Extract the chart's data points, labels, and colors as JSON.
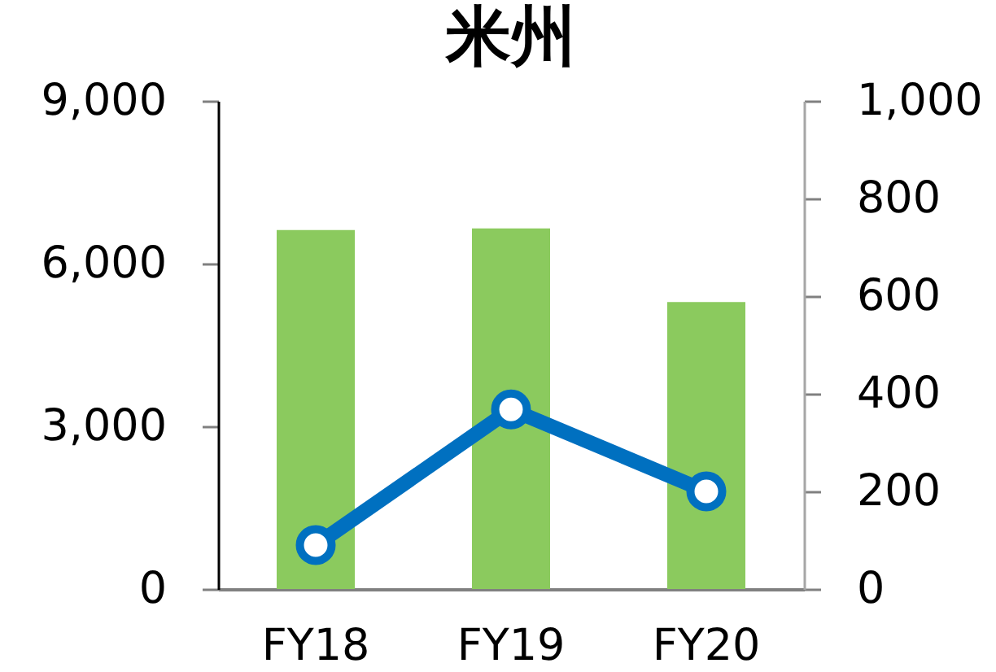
{
  "chart_data": {
    "type": "bar",
    "title": "米州",
    "categories": [
      "FY18",
      "FY19",
      "FY20"
    ],
    "series": [
      {
        "color": "#8bca5e",
        "values": [
          6620,
          6650,
          5290
        ]
      },
      {
        "type": "line",
        "axis": "y2",
        "color": "#0070c0",
        "values": [
          90,
          368,
          200
        ]
      }
    ],
    "marker": "circle",
    "grid": false,
    "ylim": [
      0,
      9000
    ],
    "yticks": [
      0,
      {
        "value": 3000,
        "label": "3,000"
      },
      {
        "value": 6000,
        "label": "6,000"
      },
      {
        "value": 9000,
        "label": "9,000"
      }
    ],
    "y2lim": [
      0,
      1000
    ],
    "y2ticks": [
      0,
      200,
      400,
      600,
      800,
      {
        "value": 1000,
        "label": "1,000"
      }
    ]
  }
}
